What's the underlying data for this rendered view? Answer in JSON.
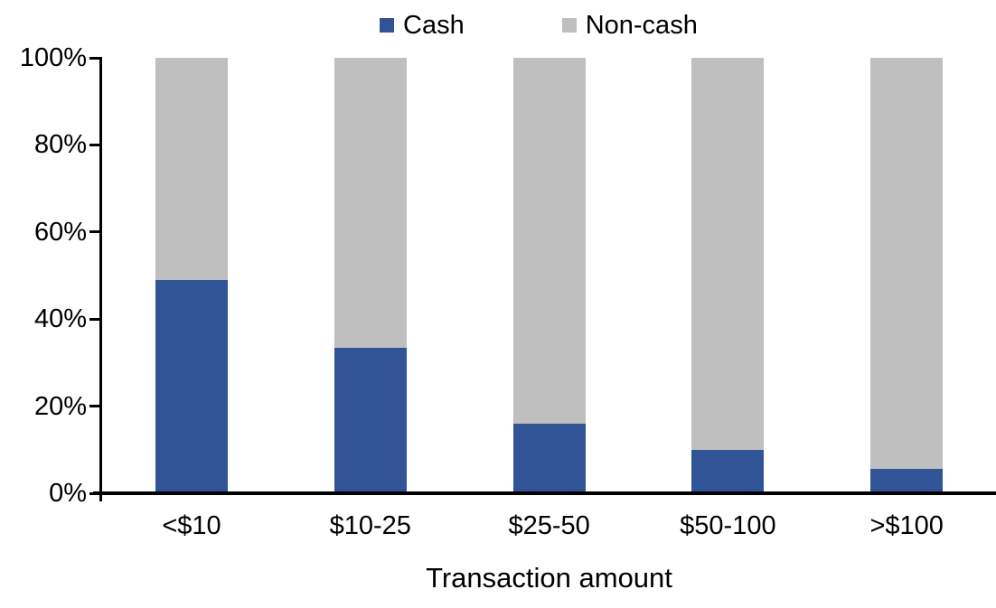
{
  "chart_data": {
    "type": "bar",
    "stacked": true,
    "title": "",
    "xlabel": "Transaction amount",
    "ylabel": "",
    "categories": [
      "<$10",
      "$10-25",
      "$25-50",
      "$50-100",
      ">$100"
    ],
    "series": [
      {
        "name": "Cash",
        "color": "#305496",
        "values": [
          49,
          33.5,
          16,
          10,
          5.5
        ]
      },
      {
        "name": "Non-cash",
        "color": "#BFBFBF",
        "values": [
          51,
          66.5,
          84,
          90,
          94.5
        ]
      }
    ],
    "ylim": [
      0,
      100
    ],
    "yticks": [
      "0%",
      "20%",
      "40%",
      "60%",
      "80%",
      "100%"
    ],
    "legend_position": "top",
    "grid": false,
    "axis_color": "#000000"
  }
}
